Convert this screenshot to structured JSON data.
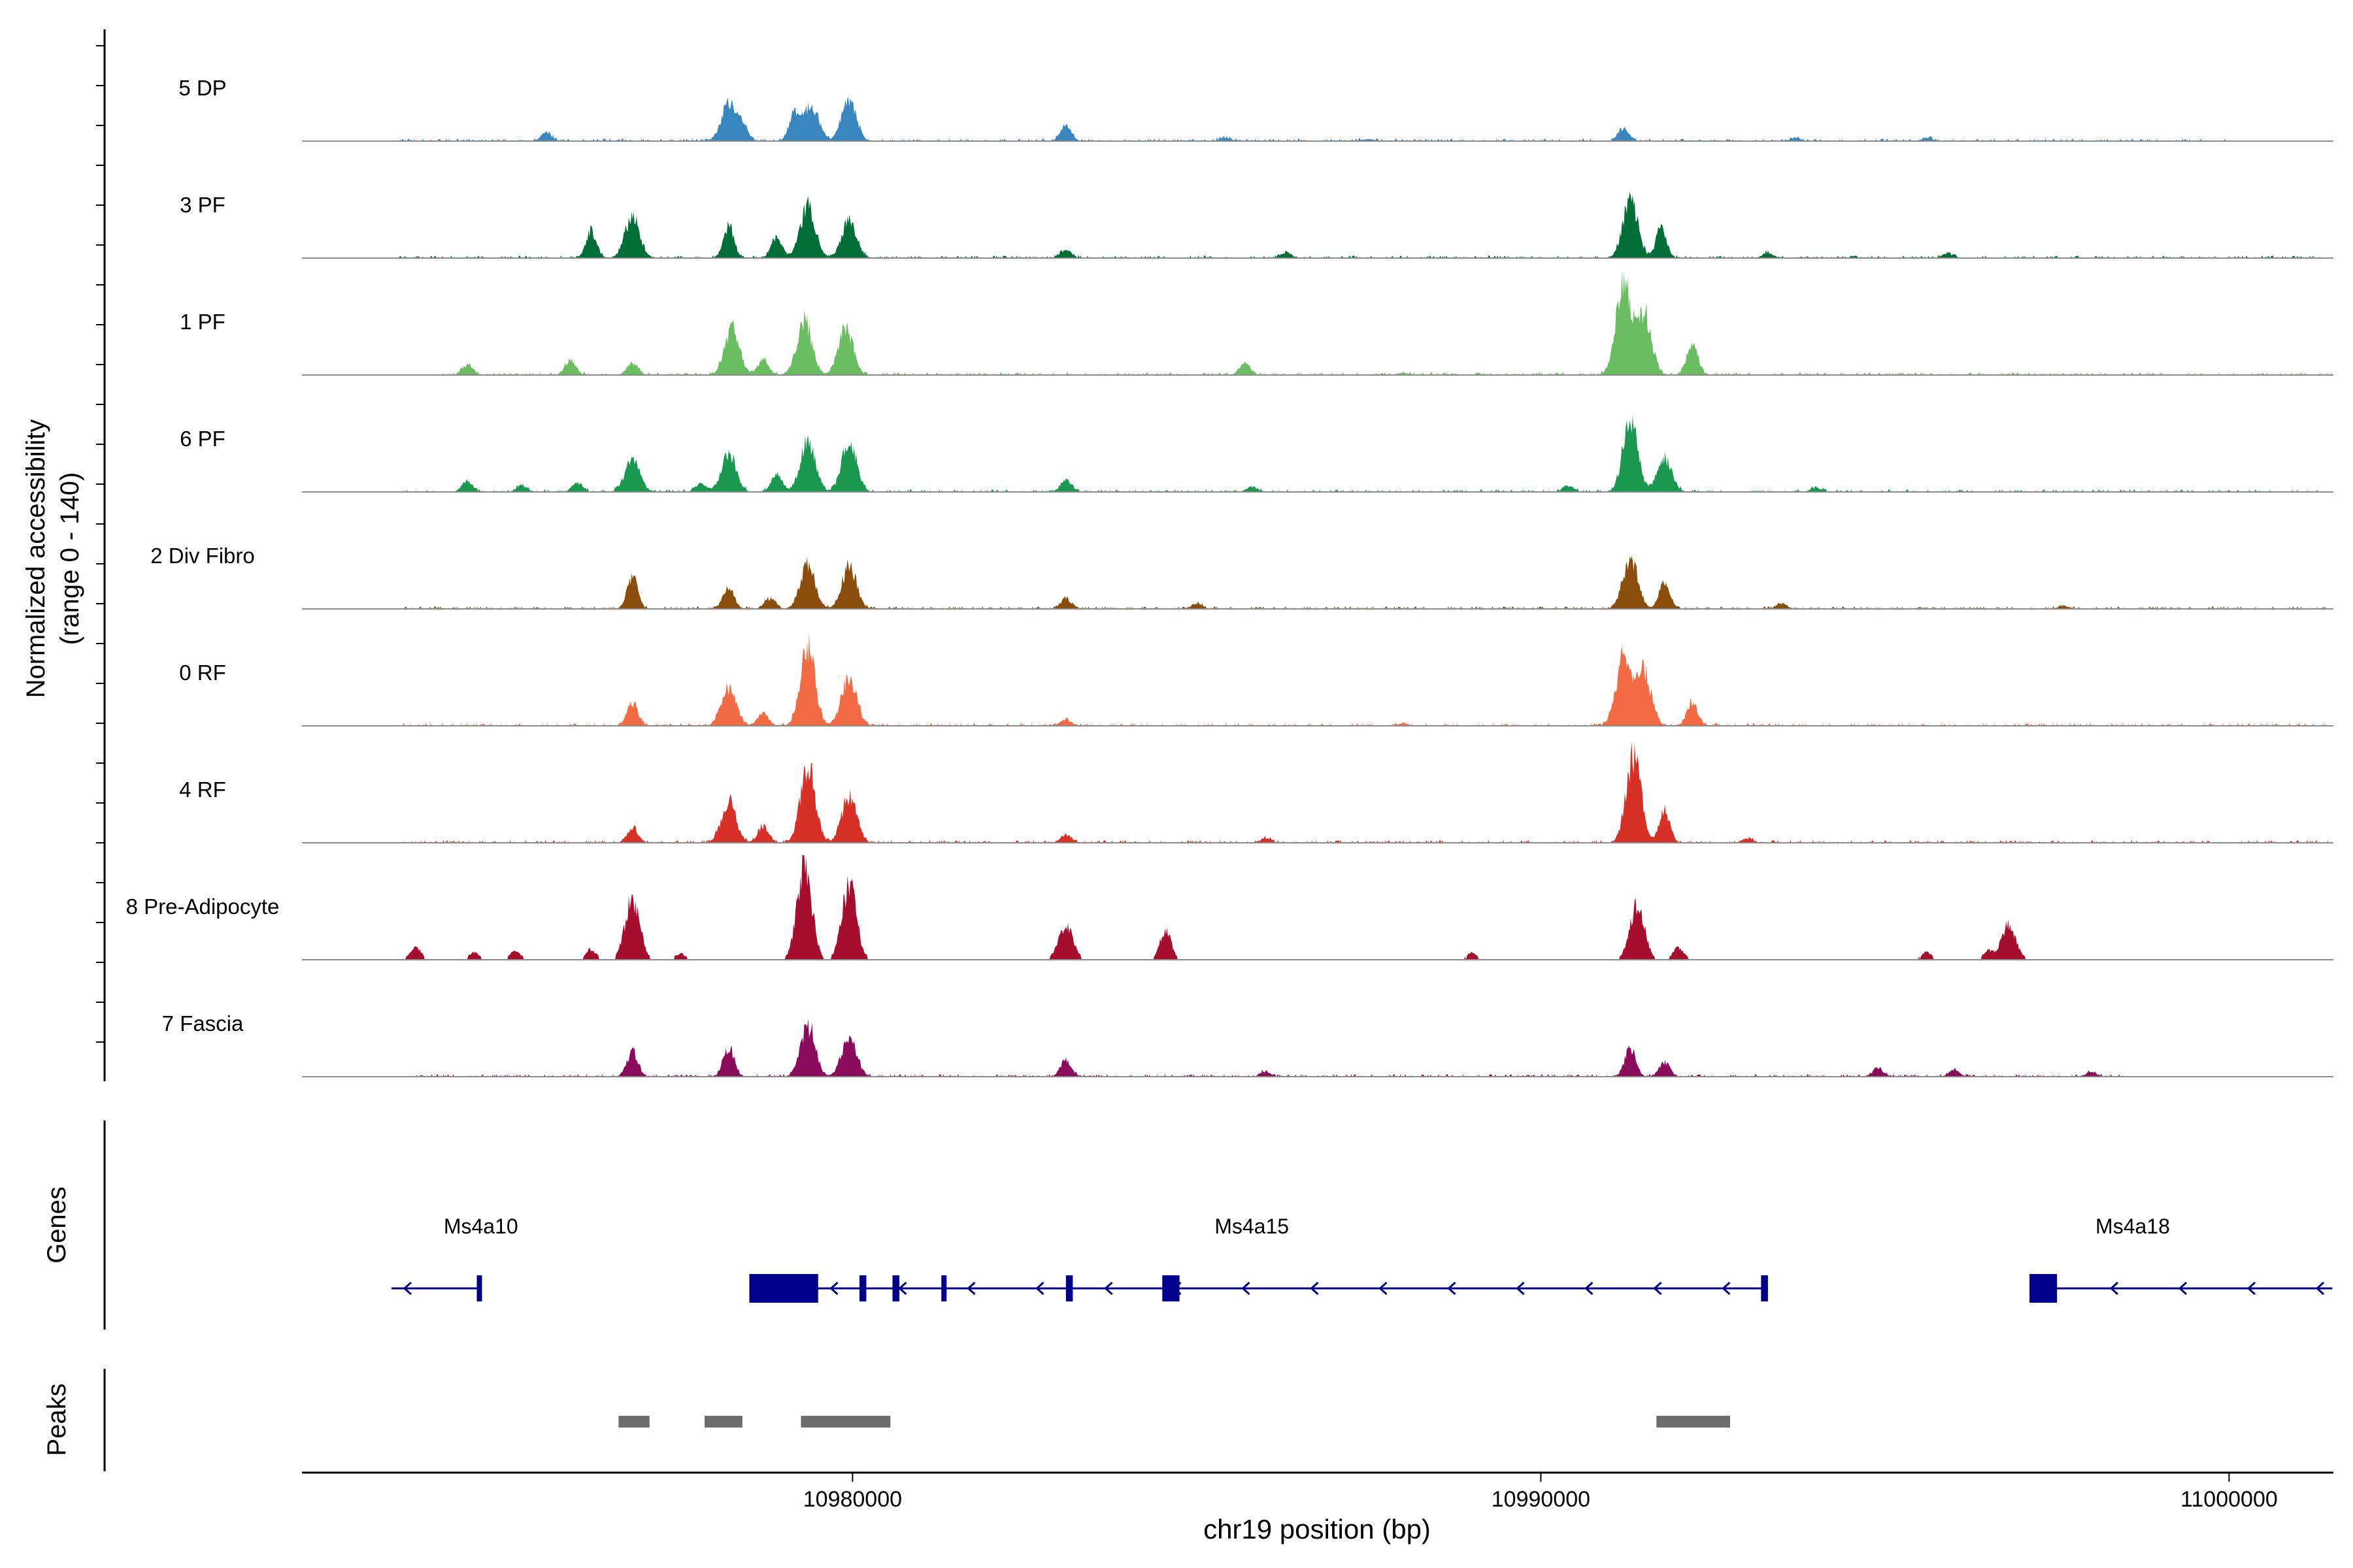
{
  "chart_data": {
    "type": "area",
    "region": {
      "chrom": "chr19",
      "start": 10972000,
      "end": 11001500
    },
    "xlabel": "chr19 position (bp)",
    "ylabel_line1": "Normalized accessibility",
    "ylabel_line2": "(range 0 - 140)",
    "yrange": [
      0,
      140
    ],
    "x_ticks": [
      {
        "value": 10980000,
        "label": "10980000"
      },
      {
        "value": 10990000,
        "label": "10990000"
      },
      {
        "value": 11000000,
        "label": "11000000"
      }
    ],
    "tracks": [
      {
        "name": "5 DP",
        "color": "#3a87c0",
        "data_start": 10973400,
        "data_end": 11000000,
        "peaks": [
          [
            10975550,
            8
          ],
          [
            10978200,
            35
          ],
          [
            10978400,
            15
          ],
          [
            10979150,
            24
          ],
          [
            10979400,
            35
          ],
          [
            10979950,
            38
          ],
          [
            10983100,
            15
          ],
          [
            10991200,
            12
          ],
          [
            10985400,
            3
          ],
          [
            10987500,
            2
          ],
          [
            10993700,
            3
          ],
          [
            10995600,
            3
          ]
        ]
      },
      {
        "name": "3 PF",
        "color": "#006e36",
        "data_start": 10973400,
        "data_end": 11001500,
        "peaks": [
          [
            10976200,
            25
          ],
          [
            10976800,
            38
          ],
          [
            10978200,
            30
          ],
          [
            10978900,
            20
          ],
          [
            10979350,
            50
          ],
          [
            10979950,
            35
          ],
          [
            10983100,
            8
          ],
          [
            10986300,
            5
          ],
          [
            10991300,
            55
          ],
          [
            10991750,
            28
          ],
          [
            10993300,
            5
          ],
          [
            10995900,
            4
          ]
        ]
      },
      {
        "name": "1 PF",
        "color": "#6bbd62",
        "data_start": 10974000,
        "data_end": 11001500,
        "peaks": [
          [
            10974400,
            10
          ],
          [
            10975900,
            14
          ],
          [
            10976800,
            12
          ],
          [
            10978250,
            44
          ],
          [
            10978700,
            14
          ],
          [
            10979300,
            52
          ],
          [
            10979900,
            46
          ],
          [
            10985700,
            11
          ],
          [
            10991200,
            88
          ],
          [
            10991500,
            60
          ],
          [
            10992200,
            30
          ],
          [
            10988000,
            2
          ]
        ]
      },
      {
        "name": "6 PF",
        "color": "#1a9850",
        "data_start": 10973400,
        "data_end": 11001500,
        "peaks": [
          [
            10974400,
            10
          ],
          [
            10975200,
            6
          ],
          [
            10976000,
            8
          ],
          [
            10976800,
            32
          ],
          [
            10977800,
            8
          ],
          [
            10978200,
            36
          ],
          [
            10978900,
            18
          ],
          [
            10979350,
            48
          ],
          [
            10979950,
            48
          ],
          [
            10983100,
            12
          ],
          [
            10985800,
            5
          ],
          [
            10991300,
            68
          ],
          [
            10991800,
            32
          ],
          [
            10990400,
            6
          ],
          [
            10994000,
            4
          ]
        ]
      },
      {
        "name": "2 Div Fibro",
        "color": "#8a4d0b",
        "data_start": 10973400,
        "data_end": 11001500,
        "peaks": [
          [
            10976800,
            30
          ],
          [
            10978200,
            22
          ],
          [
            10978800,
            10
          ],
          [
            10979350,
            40
          ],
          [
            10979950,
            40
          ],
          [
            10983100,
            10
          ],
          [
            10985000,
            5
          ],
          [
            10991300,
            48
          ],
          [
            10991800,
            25
          ],
          [
            10993500,
            5
          ],
          [
            10997600,
            3
          ]
        ]
      },
      {
        "name": "0 RF",
        "color": "#f26b45",
        "data_start": 10973400,
        "data_end": 11001500,
        "peaks": [
          [
            10976800,
            22
          ],
          [
            10978200,
            36
          ],
          [
            10978700,
            12
          ],
          [
            10979350,
            75
          ],
          [
            10979950,
            48
          ],
          [
            10983100,
            6
          ],
          [
            10991200,
            64
          ],
          [
            10991500,
            52
          ],
          [
            10992200,
            22
          ],
          [
            10988000,
            2
          ]
        ]
      },
      {
        "name": "4 RF",
        "color": "#d73027",
        "data_start": 10973400,
        "data_end": 11001500,
        "peaks": [
          [
            10976800,
            14
          ],
          [
            10978200,
            38
          ],
          [
            10978700,
            16
          ],
          [
            10979350,
            72
          ],
          [
            10979950,
            45
          ],
          [
            10983100,
            8
          ],
          [
            10986000,
            4
          ],
          [
            10991350,
            85
          ],
          [
            10991800,
            30
          ],
          [
            10993000,
            4
          ]
        ]
      },
      {
        "name": "8 Pre-Adipocyte",
        "color": "#a50f2d",
        "data_start": 10973500,
        "data_end": 11000000,
        "peaks": [
          [
            10973650,
            12
          ],
          [
            10974500,
            7
          ],
          [
            10975100,
            8
          ],
          [
            10976200,
            10
          ],
          [
            10976800,
            58
          ],
          [
            10977500,
            6
          ],
          [
            10979300,
            90
          ],
          [
            10979950,
            70
          ],
          [
            10983100,
            32
          ],
          [
            10984550,
            30
          ],
          [
            10989000,
            7
          ],
          [
            10991400,
            52
          ],
          [
            10992000,
            12
          ],
          [
            10995600,
            7
          ],
          [
            10996500,
            8
          ],
          [
            10996800,
            32
          ]
        ]
      },
      {
        "name": "7 Fascia",
        "color": "#8a0a5b",
        "data_start": 10973600,
        "data_end": 10998500,
        "peaks": [
          [
            10976800,
            24
          ],
          [
            10978200,
            28
          ],
          [
            10979350,
            48
          ],
          [
            10979950,
            38
          ],
          [
            10983100,
            16
          ],
          [
            10986000,
            5
          ],
          [
            10991300,
            28
          ],
          [
            10991800,
            14
          ],
          [
            10994900,
            8
          ],
          [
            10996000,
            6
          ],
          [
            10998000,
            4
          ]
        ]
      }
    ],
    "genes_label": "Genes",
    "genes": [
      {
        "name": "Ms4a10",
        "strand": "-",
        "start": 10973300,
        "end": 10974600,
        "label_pos": 10974600,
        "exons": [
          [
            10974540,
            10974600
          ]
        ]
      },
      {
        "name": "Ms4a15",
        "strand": "-",
        "start": 10978500,
        "end": 10993300,
        "label_pos": 10985800,
        "exons": [
          [
            10978500,
            10979500
          ],
          [
            10980100,
            10980200
          ],
          [
            10980580,
            10980680
          ],
          [
            10981290,
            10981340
          ],
          [
            10983100,
            10983200
          ],
          [
            10984500,
            10984750
          ],
          [
            10993200,
            10993300
          ]
        ]
      },
      {
        "name": "Ms4a18",
        "strand": "-",
        "start": 10997100,
        "end": 11001500,
        "label_pos": 10998600,
        "exons": [
          [
            10997100,
            10997500
          ]
        ]
      }
    ],
    "peaks_label": "Peaks",
    "peak_regions": [
      [
        10976600,
        10977050
      ],
      [
        10977850,
        10978400
      ],
      [
        10979250,
        10980550
      ],
      [
        10991680,
        10992750
      ]
    ]
  },
  "colors": {
    "gene": "#00008b",
    "peak_region": "#6e6e6e",
    "baseline": "#8c8c8c",
    "axis": "#000000"
  }
}
